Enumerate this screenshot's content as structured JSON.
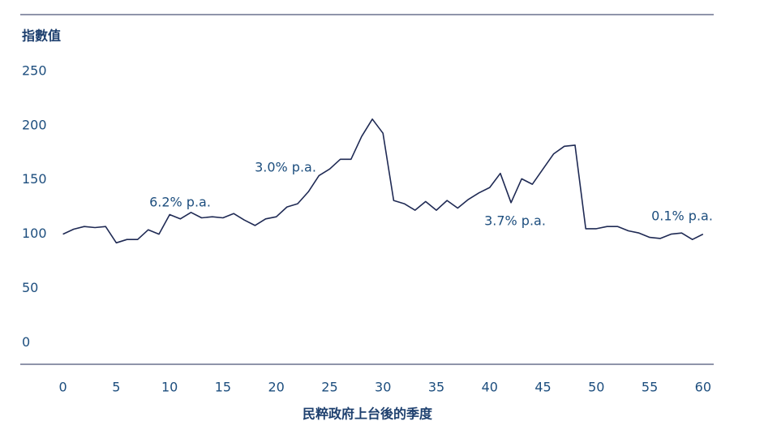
{
  "chart_data": {
    "type": "line",
    "y_label": "指數值",
    "x_label": "民粹政府上台後的季度",
    "x": [
      0,
      1,
      2,
      3,
      4,
      5,
      6,
      7,
      8,
      9,
      10,
      11,
      12,
      13,
      14,
      15,
      16,
      17,
      18,
      19,
      20,
      21,
      22,
      23,
      24,
      25,
      26,
      27,
      28,
      29,
      30,
      31,
      32,
      33,
      34,
      35,
      36,
      37,
      38,
      39,
      40,
      41,
      42,
      43,
      44,
      45,
      46,
      47,
      48,
      49,
      50,
      51,
      52,
      53,
      54,
      55,
      56,
      57,
      58,
      59,
      60
    ],
    "series": [
      {
        "color": "#1f2a54",
        "values": [
          100,
          104.5,
          107,
          106,
          107,
          92,
          95,
          95,
          104,
          100,
          118,
          114,
          120,
          115,
          116,
          115,
          119,
          113,
          108,
          114,
          116,
          125,
          128,
          139,
          154,
          160,
          169,
          169,
          190,
          206,
          193,
          131,
          128,
          122,
          130,
          122,
          131,
          124,
          132,
          138,
          143,
          156,
          129,
          151,
          146,
          160,
          174,
          181,
          182,
          105,
          105,
          107,
          107,
          103,
          101,
          97,
          96,
          100,
          101,
          95,
          100
        ]
      }
    ],
    "annotations": [
      "6.2% p.a.",
      "3.0% p.a.",
      "3.7% p.a.",
      "0.1% p.a."
    ],
    "xlim": [
      -4,
      61
    ],
    "xticks": [
      0,
      5,
      10,
      15,
      20,
      25,
      30,
      35,
      40,
      45,
      50,
      55,
      60
    ],
    "ylim": [
      -20,
      250
    ],
    "yticks": [
      0,
      50,
      100,
      150,
      200,
      250
    ]
  }
}
